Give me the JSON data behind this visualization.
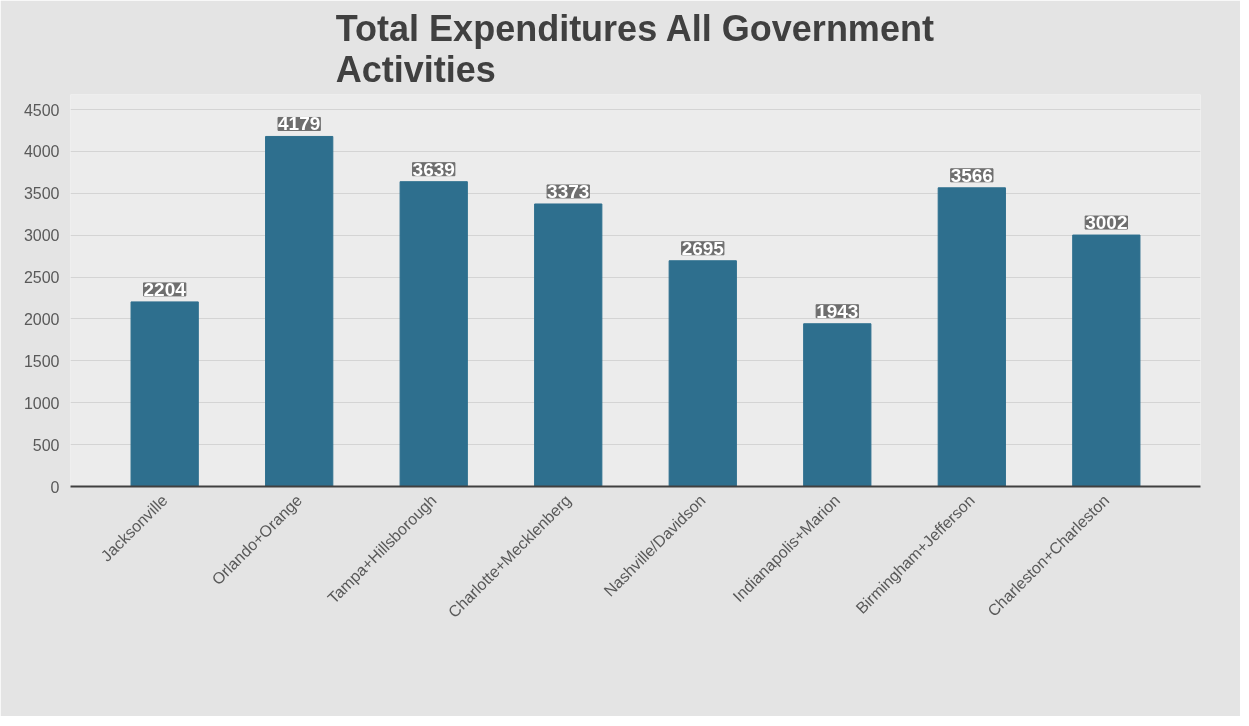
{
  "chart_data": {
    "type": "bar",
    "title": "Total Expenditures All Government\nActivities",
    "categories": [
      "Jacksonville",
      "Orlando+Orange",
      "Tampa+Hillsborough",
      "Charlotte+Mecklenberg",
      "Nashville/Davidson",
      "Indianapolis+Marion",
      "Birmingham+Jefferson",
      "Charleston+Charleston"
    ],
    "values": [
      2204,
      4179,
      3639,
      3373,
      2695,
      1943,
      3566,
      3002
    ],
    "color": "#2e6f8e",
    "ylim": [
      0,
      4500
    ],
    "yticks": [
      0,
      500,
      1000,
      1500,
      2000,
      2500,
      3000,
      3500,
      4000,
      4500
    ],
    "grid": "y",
    "data_labels": true
  }
}
